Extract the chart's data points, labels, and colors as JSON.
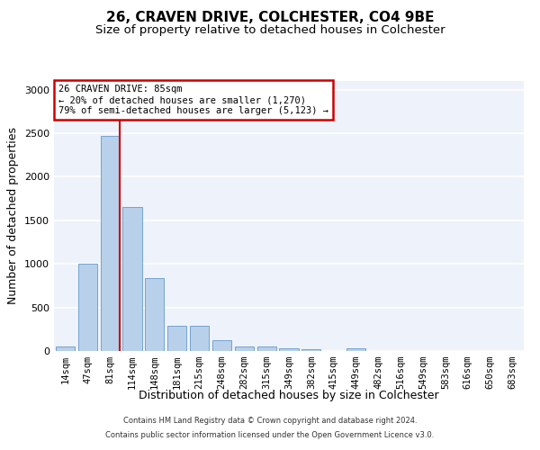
{
  "title1": "26, CRAVEN DRIVE, COLCHESTER, CO4 9BE",
  "title2": "Size of property relative to detached houses in Colchester",
  "xlabel": "Distribution of detached houses by size in Colchester",
  "ylabel": "Number of detached properties",
  "footer1": "Contains HM Land Registry data © Crown copyright and database right 2024.",
  "footer2": "Contains public sector information licensed under the Open Government Licence v3.0.",
  "categories": [
    "14sqm",
    "47sqm",
    "81sqm",
    "114sqm",
    "148sqm",
    "181sqm",
    "215sqm",
    "248sqm",
    "282sqm",
    "315sqm",
    "349sqm",
    "382sqm",
    "415sqm",
    "449sqm",
    "482sqm",
    "516sqm",
    "549sqm",
    "583sqm",
    "616sqm",
    "650sqm",
    "683sqm"
  ],
  "values": [
    50,
    1000,
    2470,
    1650,
    840,
    290,
    290,
    120,
    55,
    50,
    35,
    25,
    0,
    30,
    0,
    0,
    0,
    0,
    0,
    0,
    0
  ],
  "bar_color": "#b8d0ea",
  "bar_edge_color": "#6699cc",
  "annotation_text": "26 CRAVEN DRIVE: 85sqm\n← 20% of detached houses are smaller (1,270)\n79% of semi-detached houses are larger (5,123) →",
  "annotation_box_color": "#ffffff",
  "annotation_box_edge": "#cc0000",
  "red_line_color": "#cc0000",
  "ylim": [
    0,
    3100
  ],
  "yticks": [
    0,
    500,
    1000,
    1500,
    2000,
    2500,
    3000
  ],
  "bg_color": "#eef2fa",
  "grid_color": "#ffffff",
  "title1_fontsize": 11,
  "title2_fontsize": 9.5,
  "tick_fontsize": 7.5,
  "ylabel_fontsize": 9,
  "xlabel_fontsize": 9,
  "footer_fontsize": 6
}
